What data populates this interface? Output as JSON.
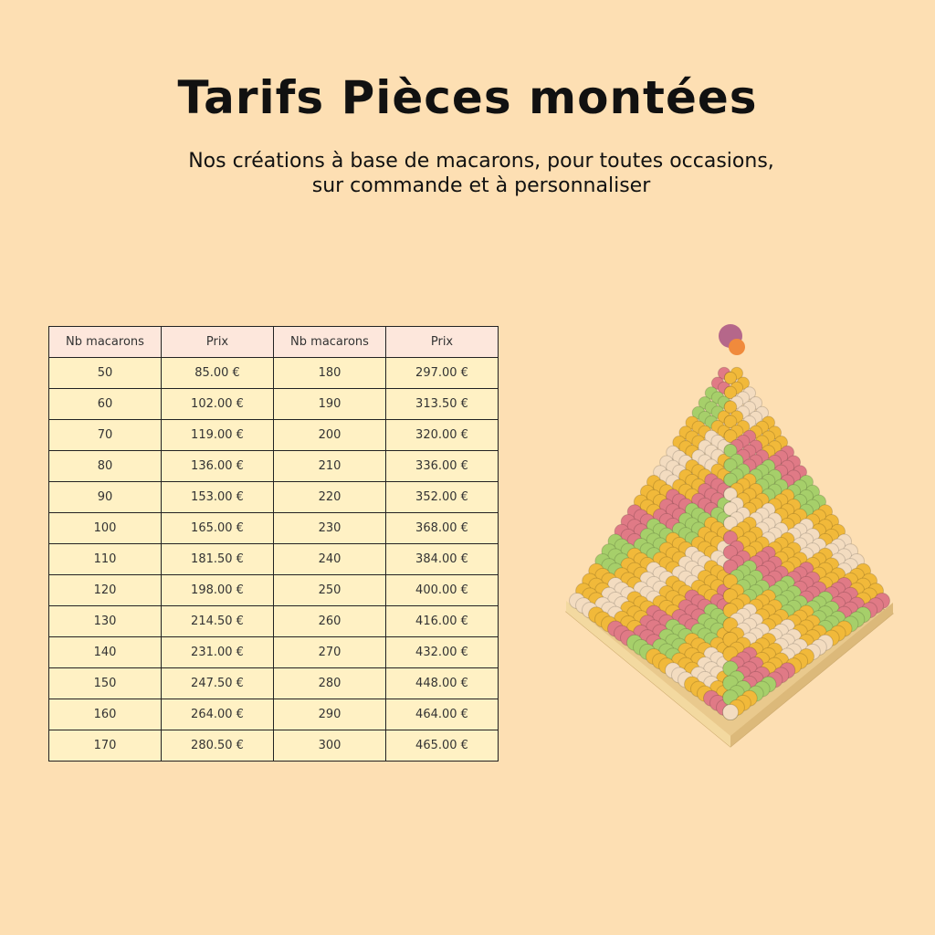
{
  "header": {
    "title": "Tarifs Pièces montées",
    "subtitle": [
      "Nos créations à base de macarons, pour toutes occasions,",
      "sur commande et à personnaliser"
    ]
  },
  "table": {
    "headers": [
      "Nb macarons",
      "Prix",
      "Nb macarons",
      "Prix"
    ],
    "rows": [
      [
        "50",
        "85.00 €",
        "180",
        "297.00 €"
      ],
      [
        "60",
        "102.00 €",
        "190",
        "313.50 €"
      ],
      [
        "70",
        "119.00 €",
        "200",
        "320.00 €"
      ],
      [
        "80",
        "136.00 €",
        "210",
        "336.00 €"
      ],
      [
        "90",
        "153.00 €",
        "220",
        "352.00 €"
      ],
      [
        "100",
        "165.00 €",
        "230",
        "368.00 €"
      ],
      [
        "110",
        "181.50 €",
        "240",
        "384.00 €"
      ],
      [
        "120",
        "198.00 €",
        "250",
        "400.00 €"
      ],
      [
        "130",
        "214.50 €",
        "260",
        "416.00 €"
      ],
      [
        "140",
        "231.00 €",
        "270",
        "432.00 €"
      ],
      [
        "150",
        "247.50 €",
        "280",
        "448.00 €"
      ],
      [
        "160",
        "264.00 €",
        "290",
        "464.00 €"
      ],
      [
        "170",
        "280.50 €",
        "300",
        "465.00 €"
      ]
    ]
  }
}
